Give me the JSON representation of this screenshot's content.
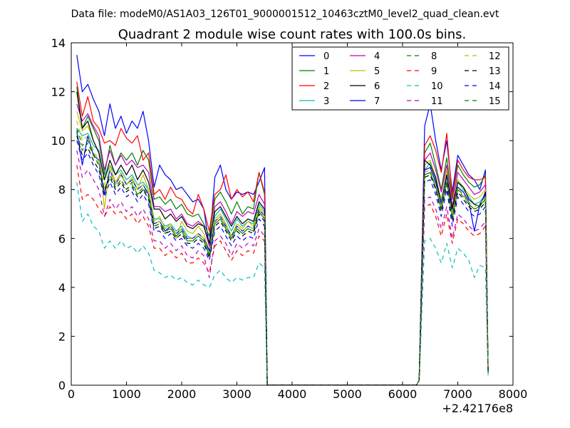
{
  "figure": {
    "suptitle": "Data file: modeM0/AS1A03_126T01_9000001512_10463cztM0_level2_quad_clean.evt"
  },
  "chart_data": {
    "type": "line",
    "title": "Quadrant 2 module wise count rates with 100.0s bins.",
    "xlabel": "",
    "ylabel": "",
    "x_offset_label": "+2.42176e8",
    "xlim": [
      0,
      8000
    ],
    "ylim": [
      0,
      14
    ],
    "xticks": [
      0,
      1000,
      2000,
      3000,
      4000,
      5000,
      6000,
      7000,
      8000
    ],
    "yticks": [
      0,
      2,
      4,
      6,
      8,
      10,
      12,
      14
    ],
    "grid": false,
    "legend_position": "top-right",
    "legend_columns": 4,
    "x": [
      100,
      200,
      300,
      400,
      500,
      600,
      700,
      800,
      900,
      1000,
      1100,
      1200,
      1300,
      1400,
      1500,
      1600,
      1700,
      1800,
      1900,
      2000,
      2100,
      2200,
      2300,
      2400,
      2500,
      2600,
      2700,
      2800,
      2900,
      3000,
      3100,
      3200,
      3300,
      3400,
      3500,
      3550,
      3600,
      3650,
      3700,
      6250,
      6300,
      6400,
      6500,
      6600,
      6700,
      6800,
      6900,
      7000,
      7100,
      7200,
      7300,
      7400,
      7500,
      7550
    ],
    "series": [
      {
        "name": "0",
        "color": "#0000ff",
        "dash": "solid",
        "values": [
          13.5,
          12.0,
          12.3,
          11.7,
          11.2,
          10.2,
          11.5,
          10.5,
          11.0,
          10.3,
          10.8,
          10.5,
          11.2,
          10.0,
          8.1,
          9.0,
          8.6,
          8.4,
          8.0,
          8.1,
          7.8,
          7.5,
          7.6,
          7.2,
          5.7,
          8.5,
          9.0,
          8.0,
          7.6,
          7.9,
          7.8,
          7.9,
          7.8,
          8.3,
          8.9,
          0.0,
          0.0,
          0.0,
          0.0,
          0.0,
          0.2,
          10.6,
          11.5,
          10.0,
          8.8,
          10.0,
          7.9,
          9.4,
          9.0,
          8.6,
          8.4,
          8.0,
          8.8,
          0.6
        ]
      },
      {
        "name": "1",
        "color": "#008000",
        "dash": "solid",
        "values": [
          12.2,
          10.5,
          11.0,
          10.5,
          10.0,
          8.6,
          9.8,
          9.0,
          9.5,
          9.2,
          9.5,
          9.0,
          9.6,
          9.2,
          7.6,
          7.7,
          7.4,
          7.6,
          7.2,
          7.4,
          7.0,
          6.9,
          7.0,
          6.6,
          6.1,
          7.6,
          7.9,
          7.5,
          7.0,
          7.5,
          7.0,
          7.3,
          7.2,
          8.7,
          7.8,
          0.0,
          0.0,
          0.0,
          0.0,
          0.0,
          0.2,
          9.5,
          9.9,
          9.0,
          8.0,
          9.3,
          7.6,
          9.0,
          8.6,
          8.3,
          8.1,
          8.2,
          8.6,
          0.5
        ]
      },
      {
        "name": "2",
        "color": "#ff0000",
        "dash": "solid",
        "values": [
          12.4,
          11.0,
          11.8,
          10.8,
          10.5,
          9.9,
          10.0,
          9.8,
          10.5,
          10.1,
          9.9,
          10.2,
          9.2,
          9.5,
          7.8,
          8.0,
          7.6,
          8.1,
          7.7,
          7.6,
          7.2,
          7.0,
          7.8,
          7.2,
          6.3,
          7.8,
          8.0,
          8.6,
          7.6,
          8.0,
          7.7,
          7.9,
          7.5,
          8.7,
          7.9,
          0.0,
          0.0,
          0.0,
          0.0,
          0.0,
          0.2,
          9.8,
          10.2,
          9.6,
          8.7,
          10.3,
          7.7,
          9.2,
          8.8,
          8.5,
          8.4,
          8.4,
          8.5,
          0.6
        ]
      },
      {
        "name": "3",
        "color": "#00bfbf",
        "dash": "solid",
        "values": [
          10.5,
          10.2,
          10.3,
          9.8,
          9.6,
          8.4,
          9.0,
          8.6,
          8.8,
          8.4,
          8.6,
          8.2,
          8.3,
          8.0,
          6.8,
          6.8,
          6.5,
          6.6,
          6.3,
          6.5,
          6.1,
          6.0,
          6.2,
          6.0,
          5.4,
          6.9,
          7.2,
          6.8,
          6.3,
          6.8,
          6.5,
          6.7,
          6.6,
          7.4,
          7.1,
          0.0,
          0.0,
          0.0,
          0.0,
          0.0,
          0.2,
          8.8,
          9.1,
          8.4,
          7.5,
          8.6,
          7.0,
          8.3,
          8.0,
          7.7,
          7.4,
          7.5,
          7.8,
          0.5
        ]
      },
      {
        "name": "4",
        "color": "#bf00bf",
        "dash": "solid",
        "values": [
          11.5,
          10.8,
          11.1,
          10.6,
          10.2,
          8.8,
          9.6,
          9.0,
          9.4,
          9.0,
          9.2,
          8.9,
          9.0,
          8.7,
          7.3,
          7.3,
          7.1,
          7.2,
          6.8,
          7.0,
          6.6,
          6.5,
          6.7,
          6.5,
          5.7,
          7.3,
          7.5,
          7.1,
          6.6,
          7.1,
          6.9,
          7.1,
          7.0,
          7.8,
          7.4,
          0.0,
          0.0,
          0.0,
          0.0,
          0.0,
          0.2,
          9.2,
          9.5,
          8.8,
          7.9,
          9.0,
          7.3,
          8.7,
          8.4,
          8.1,
          7.8,
          7.9,
          8.2,
          0.5
        ]
      },
      {
        "name": "5",
        "color": "#bfbf00",
        "dash": "solid",
        "values": [
          11.2,
          10.4,
          10.6,
          10.0,
          9.5,
          7.2,
          9.0,
          8.3,
          8.7,
          8.2,
          8.5,
          8.0,
          8.6,
          8.0,
          6.7,
          6.9,
          6.4,
          6.6,
          6.0,
          6.7,
          6.3,
          6.2,
          6.5,
          6.2,
          5.5,
          6.8,
          7.0,
          6.6,
          6.1,
          6.6,
          6.4,
          6.7,
          6.5,
          7.3,
          7.0,
          0.0,
          0.0,
          0.0,
          0.0,
          0.0,
          0.2,
          9.0,
          9.2,
          8.5,
          7.6,
          8.8,
          7.0,
          8.4,
          8.1,
          7.8,
          7.6,
          7.7,
          8.0,
          0.5
        ]
      },
      {
        "name": "6",
        "color": "#000000",
        "dash": "solid",
        "values": [
          12.0,
          10.5,
          10.8,
          10.0,
          9.5,
          8.4,
          9.2,
          8.6,
          9.0,
          8.6,
          9.0,
          8.4,
          8.8,
          8.3,
          7.2,
          7.2,
          6.8,
          7.0,
          6.7,
          6.9,
          6.5,
          6.4,
          6.6,
          6.5,
          5.8,
          7.1,
          7.3,
          6.9,
          6.5,
          6.9,
          6.6,
          6.8,
          6.7,
          7.5,
          7.2,
          0.0,
          0.0,
          0.0,
          0.0,
          0.0,
          0.2,
          9.2,
          9.0,
          8.5,
          7.4,
          8.6,
          7.2,
          8.3,
          8.1,
          7.6,
          7.4,
          7.3,
          7.9,
          0.5
        ]
      },
      {
        "name": "7",
        "color": "#0000ff",
        "dash": "solid",
        "values": [
          10.4,
          9.0,
          10.2,
          9.4,
          9.2,
          7.8,
          8.8,
          8.2,
          8.6,
          8.2,
          8.4,
          8.0,
          8.2,
          7.8,
          6.6,
          6.7,
          6.3,
          6.5,
          6.2,
          6.4,
          6.0,
          6.0,
          6.2,
          6.0,
          5.5,
          6.7,
          6.9,
          6.5,
          6.1,
          6.5,
          6.3,
          6.5,
          6.4,
          7.2,
          6.9,
          0.0,
          0.0,
          0.0,
          0.0,
          0.0,
          0.2,
          8.8,
          8.9,
          8.3,
          7.4,
          8.5,
          6.9,
          8.1,
          7.9,
          7.5,
          6.3,
          7.4,
          7.8,
          0.5
        ]
      },
      {
        "name": "8",
        "color": "#008000",
        "dash": "dashed",
        "values": [
          10.5,
          9.8,
          10.0,
          9.5,
          9.0,
          8.0,
          8.6,
          8.1,
          8.4,
          8.0,
          8.3,
          7.8,
          8.0,
          7.7,
          6.5,
          6.6,
          6.2,
          6.4,
          6.1,
          6.3,
          5.9,
          5.9,
          6.1,
          5.9,
          5.3,
          6.6,
          6.8,
          6.4,
          6.0,
          6.4,
          6.2,
          6.4,
          6.3,
          7.1,
          6.8,
          0.0,
          0.0,
          0.0,
          0.0,
          0.0,
          0.2,
          8.6,
          8.7,
          8.1,
          7.2,
          8.3,
          6.8,
          8.0,
          7.8,
          7.4,
          7.2,
          7.3,
          7.7,
          0.5
        ]
      },
      {
        "name": "9",
        "color": "#ff0000",
        "dash": "dashed",
        "values": [
          9.0,
          7.6,
          7.8,
          7.6,
          7.2,
          6.9,
          7.3,
          7.0,
          7.1,
          6.8,
          7.0,
          6.6,
          6.9,
          6.5,
          5.6,
          5.6,
          5.3,
          5.5,
          5.2,
          5.4,
          5.0,
          5.0,
          5.2,
          5.0,
          4.6,
          5.7,
          5.9,
          5.5,
          5.1,
          5.5,
          5.3,
          5.5,
          5.4,
          6.1,
          5.9,
          0.0,
          0.0,
          0.0,
          0.0,
          0.0,
          0.2,
          7.3,
          7.4,
          6.9,
          6.1,
          7.0,
          5.8,
          6.8,
          6.6,
          6.3,
          6.1,
          6.2,
          6.5,
          0.5
        ]
      },
      {
        "name": "10",
        "color": "#00bfbf",
        "dash": "dashed",
        "values": [
          8.3,
          6.7,
          7.0,
          6.5,
          6.3,
          5.6,
          5.9,
          5.6,
          5.9,
          5.6,
          5.7,
          5.4,
          5.7,
          5.4,
          4.7,
          4.6,
          4.4,
          4.5,
          4.3,
          4.4,
          4.2,
          4.1,
          4.3,
          4.1,
          4.0,
          4.5,
          4.7,
          4.4,
          4.2,
          4.4,
          4.3,
          4.4,
          4.4,
          5.0,
          4.8,
          0.0,
          0.0,
          0.0,
          0.0,
          0.0,
          0.2,
          5.9,
          6.0,
          5.6,
          5.0,
          5.8,
          4.8,
          5.6,
          5.4,
          5.1,
          4.4,
          4.9,
          4.8,
          0.4
        ]
      },
      {
        "name": "11",
        "color": "#bf00bf",
        "dash": "dashed",
        "values": [
          9.6,
          8.5,
          8.8,
          8.4,
          8.0,
          6.9,
          7.6,
          7.2,
          7.5,
          7.1,
          7.3,
          6.9,
          7.2,
          6.8,
          5.9,
          5.9,
          5.6,
          5.8,
          5.5,
          5.7,
          5.3,
          5.2,
          5.5,
          5.3,
          4.4,
          5.9,
          6.1,
          5.8,
          5.3,
          5.8,
          5.6,
          5.8,
          5.7,
          6.4,
          6.1,
          0.0,
          0.0,
          0.0,
          0.0,
          0.0,
          0.2,
          7.6,
          7.7,
          7.2,
          6.4,
          7.3,
          6.0,
          7.0,
          6.8,
          6.5,
          6.3,
          6.4,
          6.7,
          0.5
        ]
      },
      {
        "name": "12",
        "color": "#bfbf00",
        "dash": "dashed",
        "values": [
          10.8,
          10.0,
          10.2,
          9.6,
          9.2,
          8.2,
          8.8,
          8.2,
          8.6,
          8.2,
          8.4,
          8.0,
          8.2,
          7.9,
          6.6,
          6.7,
          6.4,
          6.5,
          6.2,
          6.4,
          6.0,
          6.0,
          6.2,
          6.0,
          5.4,
          6.7,
          6.9,
          6.5,
          6.1,
          6.5,
          6.3,
          6.5,
          6.4,
          7.2,
          6.9,
          0.0,
          0.0,
          0.0,
          0.0,
          0.0,
          0.2,
          8.7,
          8.8,
          8.2,
          7.3,
          8.4,
          6.9,
          8.1,
          7.8,
          7.5,
          7.3,
          7.4,
          7.7,
          0.5
        ]
      },
      {
        "name": "13",
        "color": "#000000",
        "dash": "dashed",
        "values": [
          10.2,
          9.4,
          9.7,
          9.2,
          8.8,
          7.9,
          8.5,
          8.0,
          8.3,
          7.9,
          8.1,
          7.7,
          8.0,
          7.6,
          6.4,
          6.5,
          6.2,
          6.3,
          6.0,
          6.2,
          5.8,
          5.8,
          6.0,
          5.8,
          5.2,
          6.5,
          6.7,
          6.3,
          5.9,
          6.3,
          6.1,
          6.3,
          6.2,
          7.0,
          6.7,
          0.0,
          0.0,
          0.0,
          0.0,
          0.0,
          0.2,
          8.5,
          8.6,
          8.0,
          7.1,
          8.2,
          6.7,
          7.9,
          7.6,
          7.3,
          7.1,
          7.2,
          7.5,
          0.5
        ]
      },
      {
        "name": "14",
        "color": "#0000ff",
        "dash": "dashed",
        "values": [
          10.0,
          9.2,
          9.5,
          9.0,
          8.6,
          7.7,
          8.3,
          7.8,
          8.1,
          7.7,
          7.9,
          7.5,
          7.8,
          7.4,
          6.3,
          6.3,
          6.0,
          6.2,
          5.9,
          6.0,
          5.7,
          5.6,
          5.8,
          5.6,
          5.1,
          6.3,
          6.5,
          6.1,
          5.7,
          6.1,
          5.9,
          6.1,
          6.0,
          6.8,
          6.5,
          0.0,
          0.0,
          0.0,
          0.0,
          0.0,
          0.2,
          8.3,
          8.4,
          7.8,
          6.9,
          8.0,
          6.5,
          7.7,
          7.4,
          7.1,
          6.9,
          7.0,
          7.3,
          0.5
        ]
      },
      {
        "name": "15",
        "color": "#008000",
        "dash": "dashed",
        "values": [
          10.3,
          9.6,
          9.9,
          9.4,
          9.0,
          8.0,
          8.6,
          8.1,
          8.4,
          8.0,
          8.2,
          7.8,
          8.1,
          7.7,
          6.5,
          6.6,
          6.3,
          6.4,
          6.1,
          6.3,
          5.9,
          5.9,
          6.1,
          5.9,
          5.3,
          6.6,
          6.8,
          6.4,
          6.0,
          6.4,
          6.2,
          6.4,
          6.3,
          7.1,
          6.8,
          0.0,
          0.0,
          0.0,
          0.0,
          0.0,
          0.2,
          8.6,
          8.7,
          8.1,
          7.2,
          8.3,
          6.8,
          8.0,
          7.7,
          7.4,
          7.2,
          7.3,
          7.6,
          0.5
        ]
      }
    ]
  }
}
